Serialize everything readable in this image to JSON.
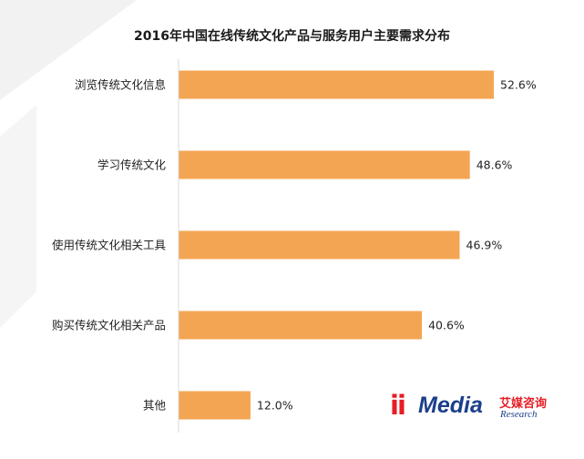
{
  "colors": {
    "bar": "#F4A553",
    "background": "#FFFFFF",
    "text": "#222222",
    "logo_red": "#E51E25",
    "logo_blue": "#1B3F8B"
  },
  "chart_data": {
    "type": "bar",
    "orientation": "horizontal",
    "title": "2016年中国在线传统文化产品与服务用户主要需求分布",
    "xlabel": "",
    "ylabel": "",
    "xlim": [
      0,
      60
    ],
    "grid": false,
    "legend": "none",
    "categories": [
      "浏览传统文化信息",
      "学习传统文化",
      "使用传统文化相关工具",
      "购买传统文化相关产品",
      "其他"
    ],
    "values": [
      52.6,
      48.6,
      46.9,
      40.6,
      12.0
    ],
    "value_labels": [
      "52.6%",
      "48.6%",
      "46.9%",
      "40.6%",
      "12.0%"
    ]
  },
  "logo": {
    "mark": "ii",
    "brand": "Media",
    "cn": "艾媒咨询",
    "en": "Research"
  }
}
